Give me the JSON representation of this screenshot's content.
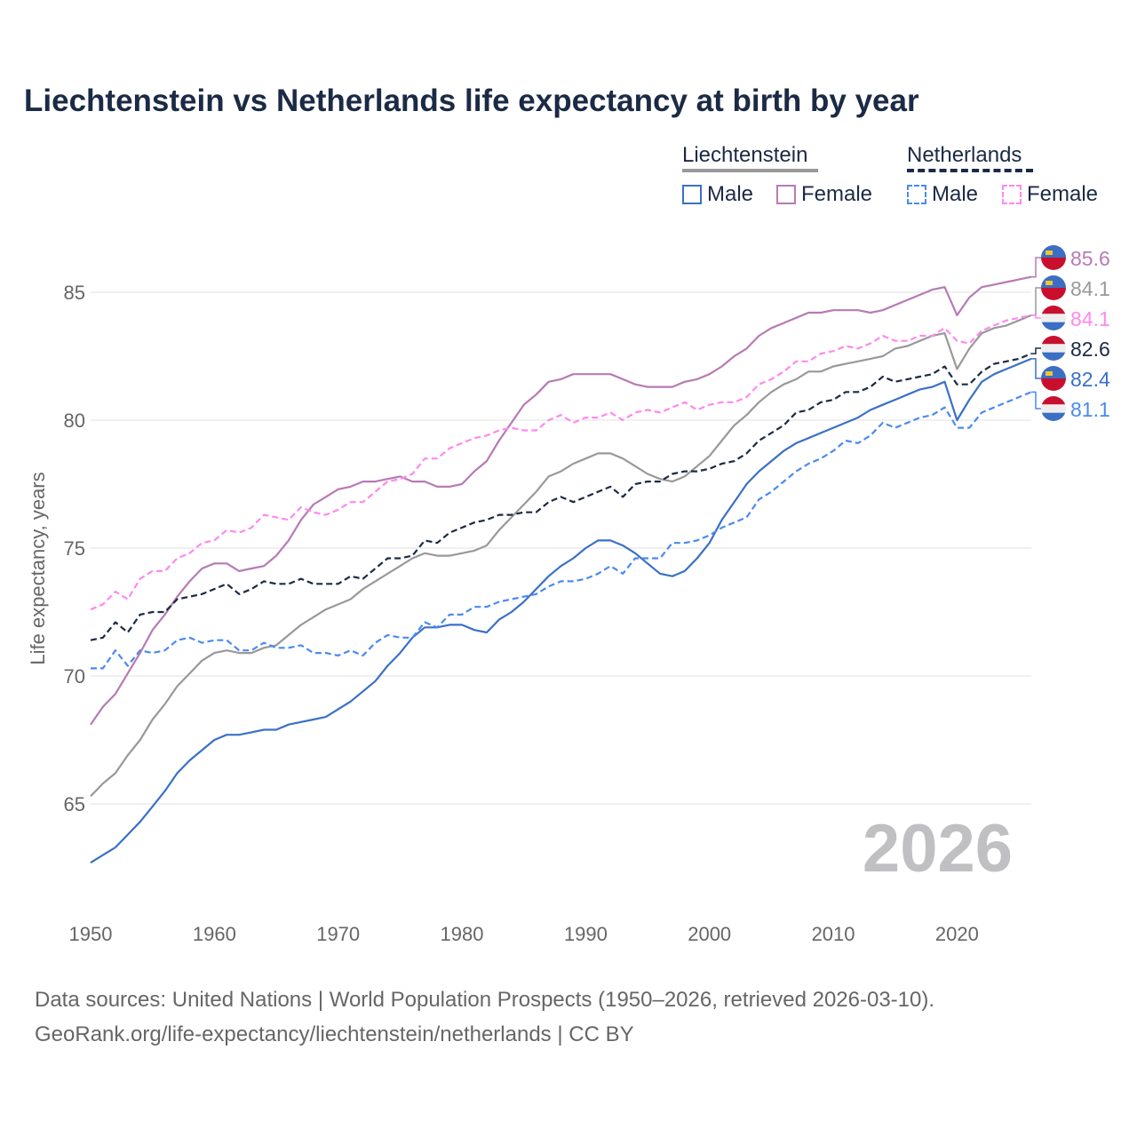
{
  "title": "Liechtenstein vs Netherlands life expectancy at birth by year",
  "legend": {
    "groups": [
      {
        "name": "Liechtenstein",
        "color": "#999999",
        "items": [
          {
            "label": "Male",
            "color": "#3a70c8"
          },
          {
            "label": "Female",
            "color": "#b77ab5"
          }
        ]
      },
      {
        "name": "Netherlands",
        "color": "#1b2a45",
        "items": [
          {
            "label": "Male",
            "color": "#4a8af0"
          },
          {
            "label": "Female",
            "color": "#ff88ee"
          }
        ]
      }
    ]
  },
  "year_watermark": "2026",
  "footer": {
    "line1": "Data sources: United Nations | World Population Prospects (1950–2026, retrieved 2026-03-10).",
    "line2": "GeoRank.org/life-expectancy/liechtenstein/netherlands | CC BY"
  },
  "chart_data": {
    "type": "line",
    "title": "Liechtenstein vs Netherlands life expectancy at birth by year",
    "xlabel": "",
    "ylabel": "Life expectancy, years",
    "xlim": [
      1950,
      2026
    ],
    "ylim": [
      61.5,
      87
    ],
    "xticks": [
      1950,
      1960,
      1970,
      1980,
      1990,
      2000,
      2010,
      2020
    ],
    "yticks": [
      65,
      70,
      75,
      80,
      85
    ],
    "grid": true,
    "legend_position": "top-right",
    "x_start": 1950,
    "series": [
      {
        "name": "Liechtenstein Female",
        "country": "LI",
        "color": "#b77ab5",
        "dashed": false,
        "end_label": "85.6",
        "values": [
          68.1,
          68.8,
          69.3,
          70.1,
          70.9,
          71.8,
          72.4,
          73.1,
          73.7,
          74.2,
          74.4,
          74.4,
          74.1,
          74.2,
          74.3,
          74.7,
          75.3,
          76.1,
          76.7,
          77.0,
          77.3,
          77.4,
          77.6,
          77.6,
          77.7,
          77.8,
          77.6,
          77.6,
          77.4,
          77.4,
          77.5,
          78.0,
          78.4,
          79.2,
          79.9,
          80.6,
          81.0,
          81.5,
          81.6,
          81.8,
          81.8,
          81.8,
          81.8,
          81.6,
          81.4,
          81.3,
          81.3,
          81.3,
          81.5,
          81.6,
          81.8,
          82.1,
          82.5,
          82.8,
          83.3,
          83.6,
          83.8,
          84.0,
          84.2,
          84.2,
          84.3,
          84.3,
          84.3,
          84.2,
          84.3,
          84.5,
          84.7,
          84.9,
          85.1,
          85.2,
          84.1,
          84.8,
          85.2,
          85.3,
          85.4,
          85.5,
          85.6
        ]
      },
      {
        "name": "Liechtenstein",
        "country": "LI",
        "color": "#999999",
        "dashed": false,
        "end_label": "84.1",
        "values": [
          65.3,
          65.8,
          66.2,
          66.9,
          67.5,
          68.3,
          68.9,
          69.6,
          70.1,
          70.6,
          70.9,
          71.0,
          70.9,
          70.9,
          71.1,
          71.2,
          71.6,
          72.0,
          72.3,
          72.6,
          72.8,
          73.0,
          73.4,
          73.7,
          74.0,
          74.3,
          74.6,
          74.8,
          74.7,
          74.7,
          74.8,
          74.9,
          75.1,
          75.7,
          76.2,
          76.7,
          77.2,
          77.8,
          78.0,
          78.3,
          78.5,
          78.7,
          78.7,
          78.5,
          78.2,
          77.9,
          77.7,
          77.6,
          77.8,
          78.2,
          78.6,
          79.2,
          79.8,
          80.2,
          80.7,
          81.1,
          81.4,
          81.6,
          81.9,
          81.9,
          82.1,
          82.2,
          82.3,
          82.4,
          82.5,
          82.8,
          82.9,
          83.1,
          83.3,
          83.4,
          82.0,
          82.8,
          83.4,
          83.6,
          83.7,
          83.9,
          84.1
        ]
      },
      {
        "name": "Netherlands Female",
        "country": "NL",
        "color": "#ff88ee",
        "dashed": true,
        "end_label": "84.1",
        "values": [
          72.6,
          72.8,
          73.3,
          73.0,
          73.8,
          74.1,
          74.1,
          74.6,
          74.8,
          75.2,
          75.3,
          75.7,
          75.6,
          75.8,
          76.3,
          76.2,
          76.1,
          76.6,
          76.4,
          76.3,
          76.5,
          76.8,
          76.8,
          77.2,
          77.6,
          77.7,
          77.9,
          78.5,
          78.5,
          78.9,
          79.1,
          79.3,
          79.4,
          79.6,
          79.7,
          79.6,
          79.6,
          80.0,
          80.2,
          79.9,
          80.1,
          80.1,
          80.3,
          80.0,
          80.3,
          80.4,
          80.3,
          80.5,
          80.7,
          80.4,
          80.6,
          80.7,
          80.7,
          80.9,
          81.4,
          81.6,
          81.9,
          82.3,
          82.3,
          82.6,
          82.7,
          82.9,
          82.8,
          83.0,
          83.3,
          83.1,
          83.1,
          83.3,
          83.3,
          83.6,
          83.1,
          83.0,
          83.5,
          83.7,
          83.9,
          84.0,
          84.1
        ]
      },
      {
        "name": "Netherlands",
        "country": "NL",
        "color": "#1b2a45",
        "dashed": true,
        "end_label": "82.6",
        "values": [
          71.4,
          71.5,
          72.1,
          71.7,
          72.4,
          72.5,
          72.5,
          73.0,
          73.1,
          73.2,
          73.4,
          73.6,
          73.2,
          73.4,
          73.7,
          73.6,
          73.6,
          73.8,
          73.6,
          73.6,
          73.6,
          73.9,
          73.8,
          74.2,
          74.6,
          74.6,
          74.7,
          75.3,
          75.2,
          75.6,
          75.8,
          76.0,
          76.1,
          76.3,
          76.3,
          76.4,
          76.4,
          76.8,
          77.0,
          76.8,
          77.0,
          77.2,
          77.4,
          77.0,
          77.5,
          77.6,
          77.6,
          77.9,
          78.0,
          78.0,
          78.1,
          78.3,
          78.4,
          78.7,
          79.2,
          79.5,
          79.8,
          80.3,
          80.4,
          80.7,
          80.8,
          81.1,
          81.1,
          81.3,
          81.7,
          81.5,
          81.6,
          81.7,
          81.8,
          82.1,
          81.4,
          81.4,
          81.9,
          82.2,
          82.3,
          82.4,
          82.6
        ]
      },
      {
        "name": "Liechtenstein Male",
        "country": "LI",
        "color": "#3a70c8",
        "dashed": false,
        "end_label": "82.4",
        "values": [
          62.7,
          63.0,
          63.3,
          63.8,
          64.3,
          64.9,
          65.5,
          66.2,
          66.7,
          67.1,
          67.5,
          67.7,
          67.7,
          67.8,
          67.9,
          67.9,
          68.1,
          68.2,
          68.3,
          68.4,
          68.7,
          69.0,
          69.4,
          69.8,
          70.4,
          70.9,
          71.5,
          71.9,
          71.9,
          72.0,
          72.0,
          71.8,
          71.7,
          72.2,
          72.5,
          72.9,
          73.4,
          73.9,
          74.3,
          74.6,
          75.0,
          75.3,
          75.3,
          75.1,
          74.8,
          74.4,
          74.0,
          73.9,
          74.1,
          74.6,
          75.2,
          76.1,
          76.8,
          77.5,
          78.0,
          78.4,
          78.8,
          79.1,
          79.3,
          79.5,
          79.7,
          79.9,
          80.1,
          80.4,
          80.6,
          80.8,
          81.0,
          81.2,
          81.3,
          81.5,
          80.0,
          80.8,
          81.5,
          81.8,
          82.0,
          82.2,
          82.4
        ]
      },
      {
        "name": "Netherlands Male",
        "country": "NL",
        "color": "#4a8af0",
        "dashed": true,
        "end_label": "81.1",
        "values": [
          70.3,
          70.3,
          71.0,
          70.4,
          71.0,
          70.9,
          71.0,
          71.4,
          71.5,
          71.3,
          71.4,
          71.4,
          71.0,
          71.0,
          71.3,
          71.1,
          71.1,
          71.2,
          70.9,
          70.9,
          70.8,
          71.0,
          70.8,
          71.3,
          71.6,
          71.5,
          71.5,
          72.1,
          71.9,
          72.4,
          72.4,
          72.7,
          72.7,
          72.9,
          73.0,
          73.1,
          73.2,
          73.5,
          73.7,
          73.7,
          73.8,
          74.0,
          74.3,
          74.0,
          74.6,
          74.6,
          74.6,
          75.2,
          75.2,
          75.3,
          75.5,
          75.8,
          76.0,
          76.2,
          76.9,
          77.2,
          77.6,
          78.0,
          78.3,
          78.5,
          78.8,
          79.2,
          79.1,
          79.4,
          79.9,
          79.7,
          79.9,
          80.1,
          80.2,
          80.5,
          79.7,
          79.7,
          80.3,
          80.5,
          80.7,
          80.9,
          81.1
        ]
      }
    ]
  }
}
